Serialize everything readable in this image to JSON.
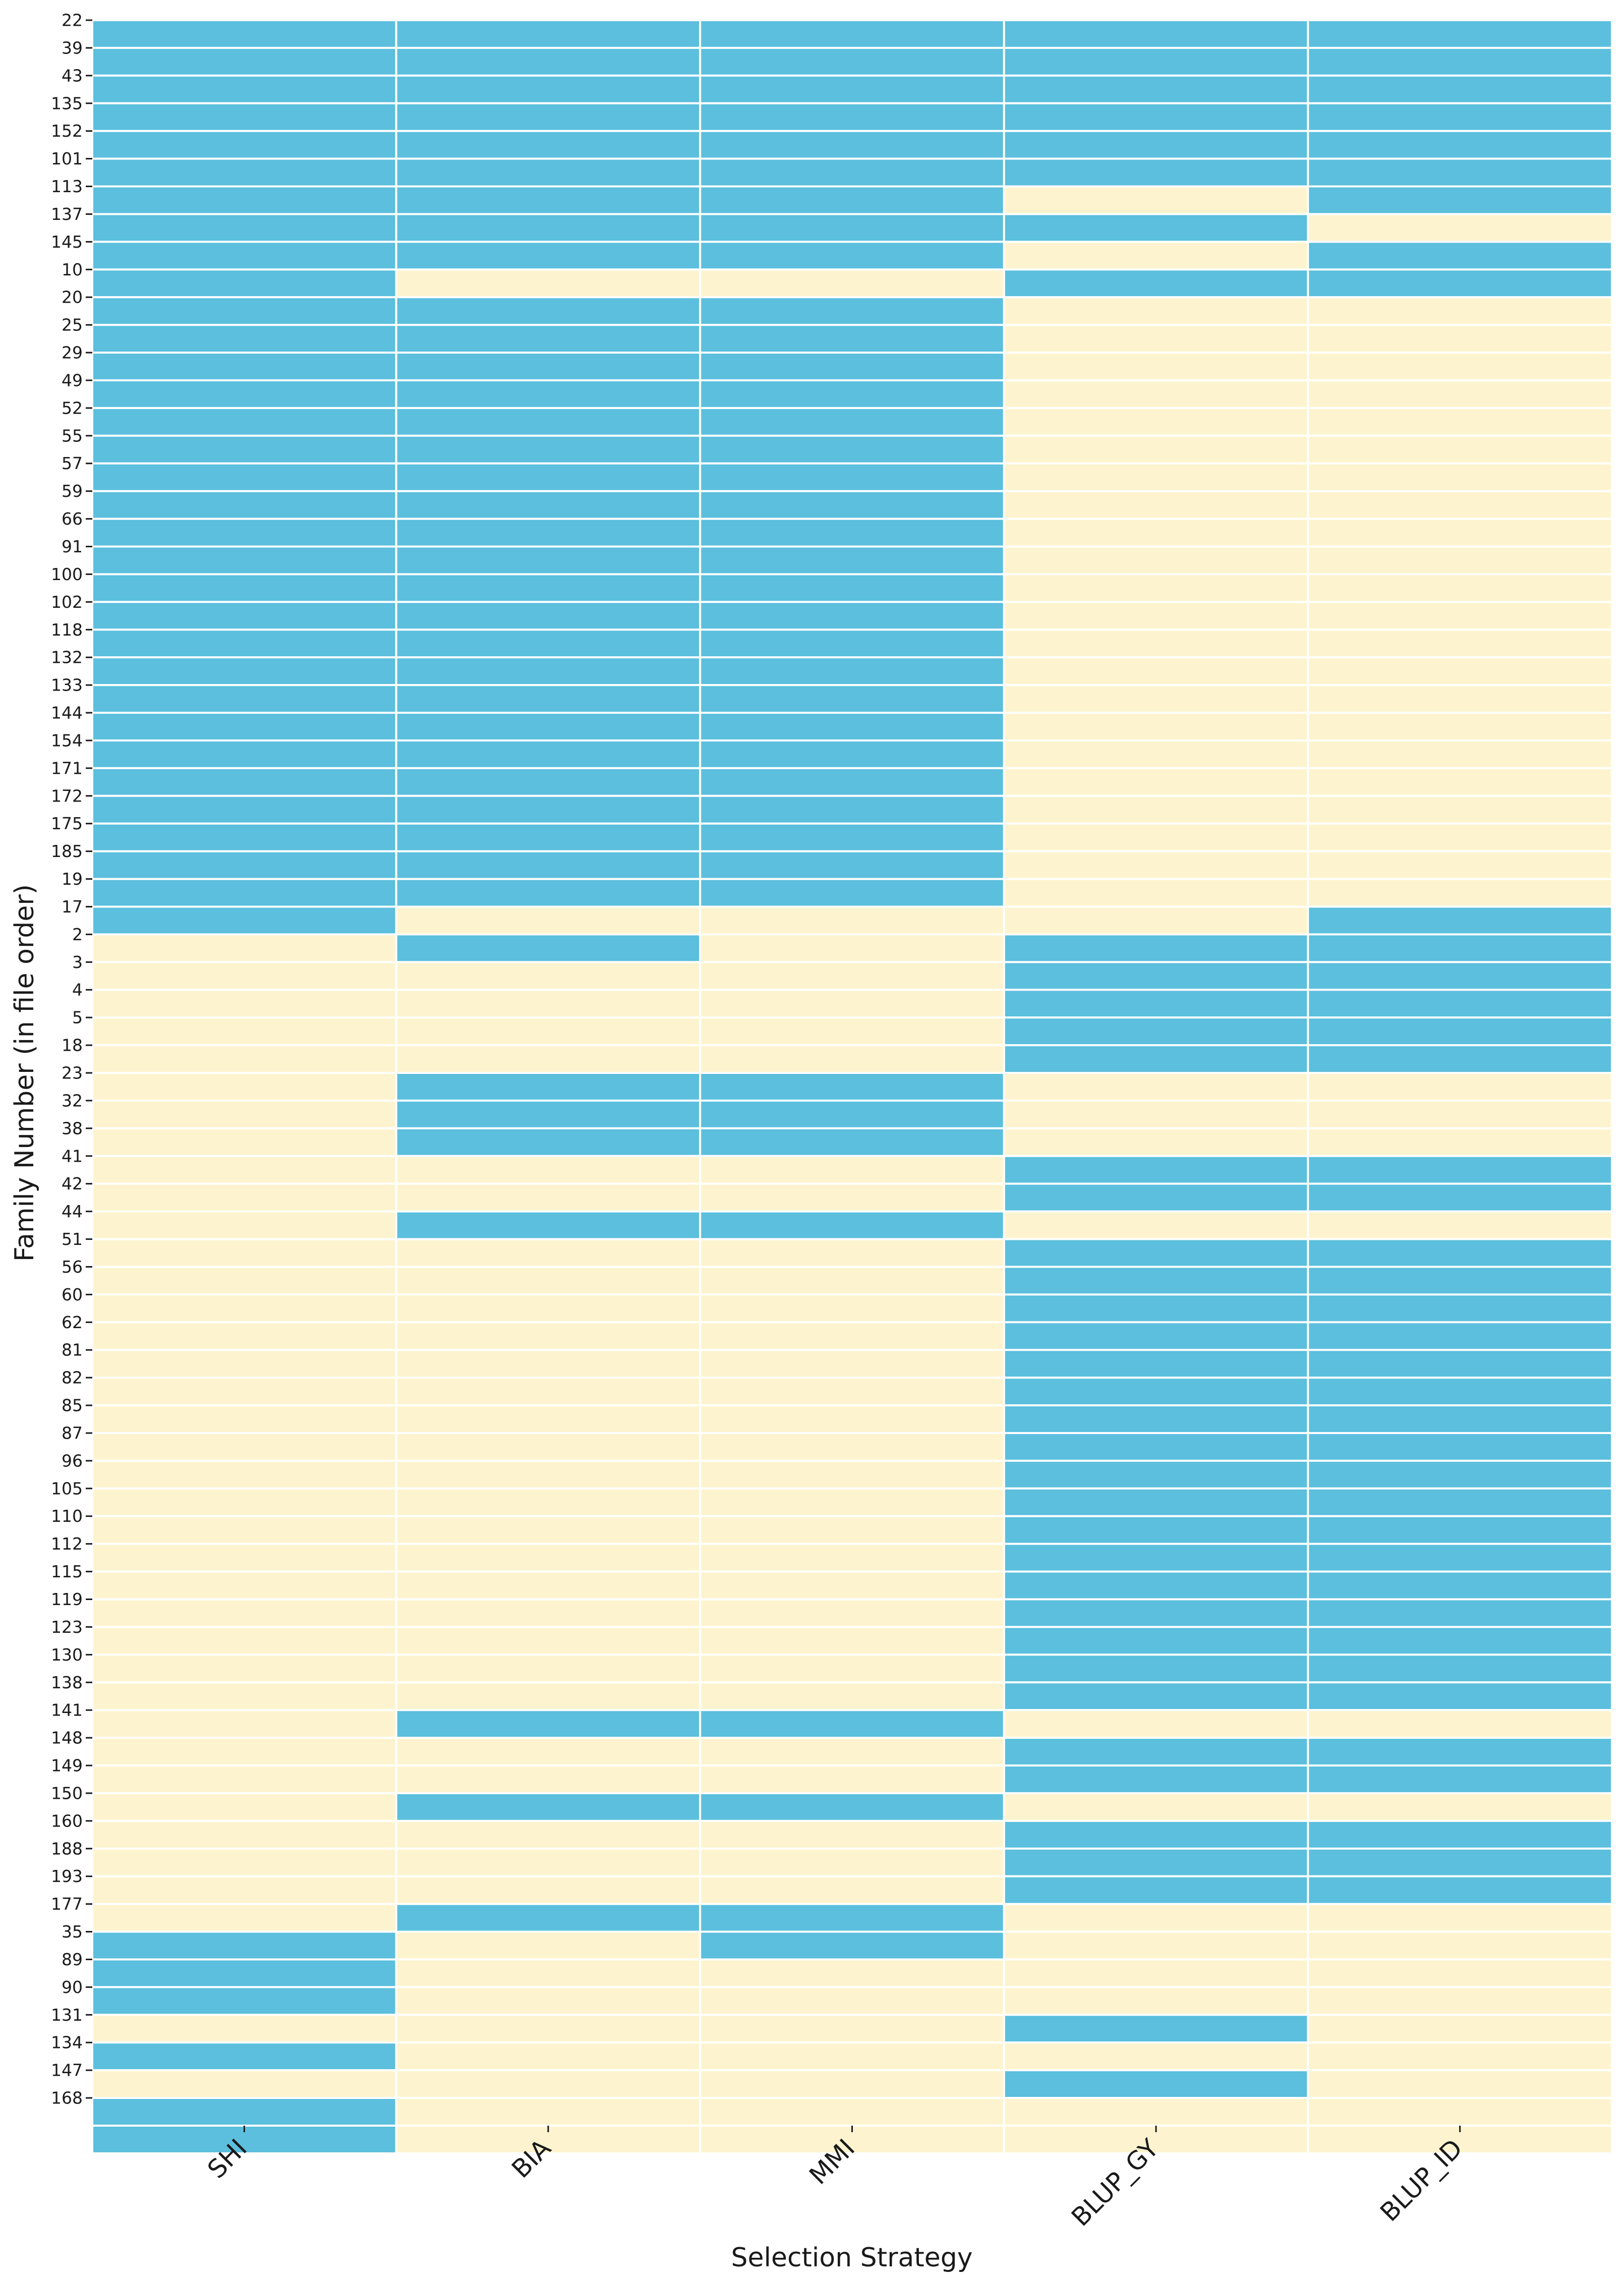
{
  "chart_data": {
    "type": "heatmap",
    "title": "",
    "xlabel": "Selection Strategy",
    "ylabel": "Family Number (in file order)",
    "columns": [
      "SHI",
      "BIA",
      "MMI",
      "BLUP_GY",
      "BLUP_ID"
    ],
    "rows": [
      "22",
      "39",
      "43",
      "135",
      "152",
      "101",
      "113",
      "137",
      "145",
      "10",
      "20",
      "25",
      "29",
      "49",
      "52",
      "55",
      "57",
      "59",
      "66",
      "91",
      "100",
      "102",
      "118",
      "132",
      "133",
      "144",
      "154",
      "171",
      "172",
      "175",
      "185",
      "19",
      "17",
      "2",
      "3",
      "4",
      "5",
      "18",
      "23",
      "32",
      "38",
      "41",
      "42",
      "44",
      "51",
      "56",
      "60",
      "62",
      "81",
      "82",
      "85",
      "87",
      "96",
      "105",
      "110",
      "112",
      "115",
      "119",
      "123",
      "130",
      "138",
      "141",
      "148",
      "149",
      "150",
      "160",
      "188",
      "193",
      "177",
      "35",
      "89",
      "90",
      "131",
      "134",
      "147",
      "168"
    ],
    "values": [
      [
        1,
        1,
        1,
        1,
        1
      ],
      [
        1,
        1,
        1,
        1,
        1
      ],
      [
        1,
        1,
        1,
        1,
        1
      ],
      [
        1,
        1,
        1,
        1,
        1
      ],
      [
        1,
        1,
        1,
        1,
        1
      ],
      [
        1,
        1,
        1,
        1,
        1
      ],
      [
        1,
        1,
        1,
        0,
        1
      ],
      [
        1,
        1,
        1,
        1,
        0
      ],
      [
        1,
        1,
        1,
        0,
        1
      ],
      [
        1,
        0,
        0,
        1,
        1
      ],
      [
        1,
        1,
        1,
        0,
        0
      ],
      [
        1,
        1,
        1,
        0,
        0
      ],
      [
        1,
        1,
        1,
        0,
        0
      ],
      [
        1,
        1,
        1,
        0,
        0
      ],
      [
        1,
        1,
        1,
        0,
        0
      ],
      [
        1,
        1,
        1,
        0,
        0
      ],
      [
        1,
        1,
        1,
        0,
        0
      ],
      [
        1,
        1,
        1,
        0,
        0
      ],
      [
        1,
        1,
        1,
        0,
        0
      ],
      [
        1,
        1,
        1,
        0,
        0
      ],
      [
        1,
        1,
        1,
        0,
        0
      ],
      [
        1,
        1,
        1,
        0,
        0
      ],
      [
        1,
        1,
        1,
        0,
        0
      ],
      [
        1,
        1,
        1,
        0,
        0
      ],
      [
        1,
        1,
        1,
        0,
        0
      ],
      [
        1,
        1,
        1,
        0,
        0
      ],
      [
        1,
        1,
        1,
        0,
        0
      ],
      [
        1,
        1,
        1,
        0,
        0
      ],
      [
        1,
        1,
        1,
        0,
        0
      ],
      [
        1,
        1,
        1,
        0,
        0
      ],
      [
        1,
        1,
        1,
        0,
        0
      ],
      [
        1,
        1,
        1,
        0,
        0
      ],
      [
        1,
        0,
        0,
        0,
        1
      ],
      [
        0,
        1,
        0,
        1,
        1
      ],
      [
        0,
        0,
        0,
        1,
        1
      ],
      [
        0,
        0,
        0,
        1,
        1
      ],
      [
        0,
        0,
        0,
        1,
        1
      ],
      [
        0,
        0,
        0,
        1,
        1
      ],
      [
        0,
        1,
        1,
        0,
        0
      ],
      [
        0,
        1,
        1,
        0,
        0
      ],
      [
        0,
        1,
        1,
        0,
        0
      ],
      [
        0,
        0,
        0,
        1,
        1
      ],
      [
        0,
        0,
        0,
        1,
        1
      ],
      [
        0,
        1,
        1,
        0,
        0
      ],
      [
        0,
        0,
        0,
        1,
        1
      ],
      [
        0,
        0,
        0,
        1,
        1
      ],
      [
        0,
        0,
        0,
        1,
        1
      ],
      [
        0,
        0,
        0,
        1,
        1
      ],
      [
        0,
        0,
        0,
        1,
        1
      ],
      [
        0,
        0,
        0,
        1,
        1
      ],
      [
        0,
        0,
        0,
        1,
        1
      ],
      [
        0,
        0,
        0,
        1,
        1
      ],
      [
        0,
        0,
        0,
        1,
        1
      ],
      [
        0,
        0,
        0,
        1,
        1
      ],
      [
        0,
        0,
        0,
        1,
        1
      ],
      [
        0,
        0,
        0,
        1,
        1
      ],
      [
        0,
        0,
        0,
        1,
        1
      ],
      [
        0,
        0,
        0,
        1,
        1
      ],
      [
        0,
        0,
        0,
        1,
        1
      ],
      [
        0,
        0,
        0,
        1,
        1
      ],
      [
        0,
        0,
        0,
        1,
        1
      ],
      [
        0,
        1,
        1,
        0,
        0
      ],
      [
        0,
        0,
        0,
        1,
        1
      ],
      [
        0,
        0,
        0,
        1,
        1
      ],
      [
        0,
        1,
        1,
        0,
        0
      ],
      [
        0,
        0,
        0,
        1,
        1
      ],
      [
        0,
        0,
        0,
        1,
        1
      ],
      [
        0,
        0,
        0,
        1,
        1
      ],
      [
        0,
        1,
        1,
        0,
        0
      ],
      [
        1,
        0,
        1,
        0,
        0
      ],
      [
        1,
        0,
        0,
        0,
        0
      ],
      [
        1,
        0,
        0,
        0,
        0
      ],
      [
        0,
        0,
        0,
        1,
        0
      ],
      [
        1,
        0,
        0,
        0,
        0
      ],
      [
        0,
        0,
        0,
        1,
        0
      ],
      [
        1,
        0,
        0,
        0,
        0
      ],
      [
        1,
        0,
        0,
        0,
        0
      ]
    ],
    "colors": {
      "selected": "#5bbfdd",
      "not_selected": "#fdf4cf",
      "grid": "#ffffff",
      "text": "#1a1a1a"
    },
    "grid": true,
    "legend": "none"
  }
}
